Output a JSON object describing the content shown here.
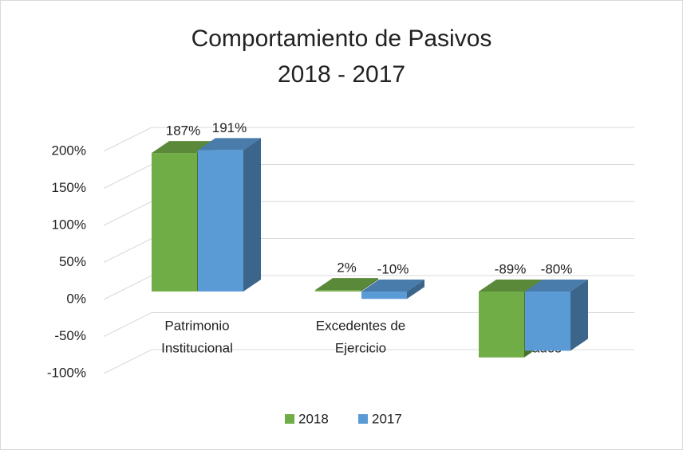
{
  "chart_data": {
    "type": "bar3d",
    "title": [
      "Comportamiento de Pasivos",
      "2018 - 2017"
    ],
    "categories": [
      [
        "Patrimonio",
        "Institucional"
      ],
      [
        "Excedentes de",
        "Ejercicio"
      ],
      [
        "Excedentes",
        "Acumulados"
      ]
    ],
    "series": [
      {
        "name": "2018",
        "color": "#70ad47",
        "values": [
          187,
          2,
          -89
        ],
        "value_labels": [
          "187%",
          "2%",
          "-89%"
        ]
      },
      {
        "name": "2017",
        "color": "#5b9bd5",
        "values": [
          191,
          -10,
          -80
        ],
        "value_labels": [
          "191%",
          "-10%",
          "-80%"
        ]
      }
    ],
    "ylim": [
      -100,
      200
    ],
    "yticks": [
      {
        "value": -100,
        "label": "-100%"
      },
      {
        "value": -50,
        "label": "-50%"
      },
      {
        "value": 0,
        "label": "0%"
      },
      {
        "value": 50,
        "label": "50%"
      },
      {
        "value": 100,
        "label": "100%"
      },
      {
        "value": 150,
        "label": "150%"
      },
      {
        "value": 200,
        "label": "200%"
      }
    ],
    "grid": true,
    "legend": "bottom"
  }
}
